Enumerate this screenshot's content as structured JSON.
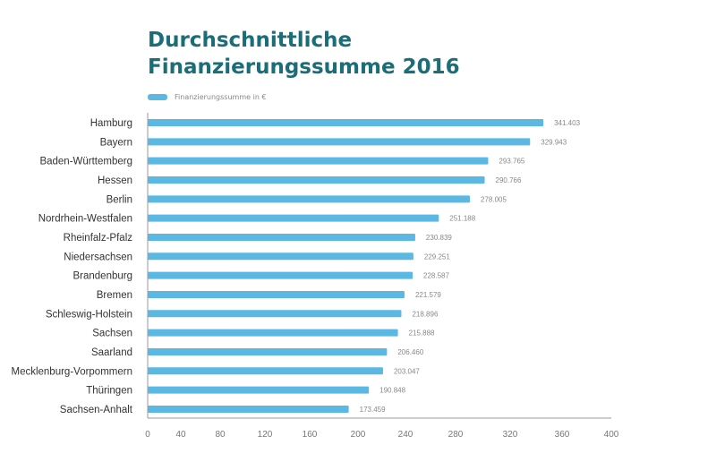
{
  "chart_data": {
    "type": "bar",
    "orientation": "horizontal",
    "title": "Durchschnittliche Finanzierungssumme 2016",
    "title_lines": [
      "Durchschnittliche",
      "Finanzierungssumme 2016"
    ],
    "legend": {
      "position": "top-left",
      "entries": [
        "Finanzierungssumme in €"
      ]
    },
    "series": [
      {
        "name": "Finanzierungssumme in €",
        "color": "#5bb8e3"
      }
    ],
    "categories": [
      "Hamburg",
      "Bayern",
      "Baden-Württemberg",
      "Hessen",
      "Berlin",
      "Nordrhein-Westfalen",
      "Rheinfalz-Pfalz",
      "Niedersachsen",
      "Brandenburg",
      "Bremen",
      "Schleswig-Holstein",
      "Sachsen",
      "Saarland",
      "Mecklenburg-Vorpommern",
      "Thüringen",
      "Sachsen-Anhalt"
    ],
    "values": [
      341.403,
      329.943,
      293.765,
      290.766,
      278.005,
      251.188,
      230.839,
      229.251,
      228.587,
      221.579,
      218.896,
      215.888,
      206.46,
      203.047,
      190.848,
      173.459
    ],
    "value_labels": [
      "341.403",
      "329.943",
      "293.765",
      "290.766",
      "278.005",
      "251.188",
      "230.839",
      "229.251",
      "228.587",
      "221.579",
      "218.896",
      "215.888",
      "206.460",
      "203.047",
      "190.848",
      "173.459"
    ],
    "xlim": [
      0,
      400
    ],
    "x_ticks": [
      "0",
      "40",
      "80",
      "120",
      "160",
      "200",
      "240",
      "280",
      "320",
      "360",
      "400"
    ],
    "grid": false,
    "title_color": "#1b6d77"
  }
}
